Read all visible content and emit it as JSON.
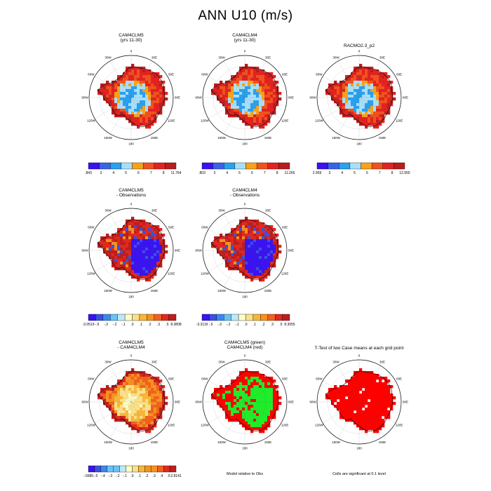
{
  "page": {
    "title": "ANN U10 (m/s)"
  },
  "lon_labels": [
    "0",
    "30E",
    "60E",
    "90E",
    "120E",
    "150E",
    "180",
    "150W",
    "120W",
    "90W",
    "60W",
    "30W"
  ],
  "colors": {
    "abs": [
      "#3b12f0",
      "#3a62e8",
      "#2aa0f0",
      "#a8dff8",
      "#f7a21a",
      "#f0521e",
      "#e32220",
      "#b81e1e"
    ],
    "diff": [
      "#3b12f0",
      "#3a52e0",
      "#3a88ef",
      "#69c2f6",
      "#bde8fa",
      "#fffcc4",
      "#fbe08a",
      "#f7b63a",
      "#f5931e",
      "#f0621e",
      "#e2281f",
      "#bd1e1e"
    ],
    "green": "#1fec2a",
    "red": "#ff0000",
    "land_outline": "#000000"
  },
  "panels": [
    {
      "title": [
        "CAM4CLM5",
        "(yrs 11-30)"
      ],
      "fill_kind": "abs",
      "colorbar": {
        "labels": [
          ".843",
          "3",
          "4",
          "5",
          "6",
          "7",
          "8",
          "11.764"
        ]
      }
    },
    {
      "title": [
        "CAM4CLM4",
        "(yrs 11-30)"
      ],
      "fill_kind": "abs",
      "colorbar": {
        "labels": [
          ".803",
          "3",
          "4",
          "5",
          "6",
          "7",
          "8",
          "11.265"
        ]
      }
    },
    {
      "title": [
        "RACMO2.3_p2"
      ],
      "fill_kind": "abs",
      "colorbar": {
        "labels": [
          "2.959",
          "3",
          "4",
          "5",
          "6",
          "7",
          "8",
          "12.955"
        ]
      }
    },
    {
      "title": [
        "CAM4CLM5",
        "- Observations"
      ],
      "fill_kind": "bias",
      "colorbar": {
        "labels": [
          "-3.0519",
          "-.5",
          "-.3",
          "-.2",
          "-.1",
          ".0",
          ".1",
          ".2",
          ".3",
          ".5",
          "8.3808"
        ]
      }
    },
    {
      "title": [
        "CAM4CLM4",
        "- Observations"
      ],
      "fill_kind": "bias",
      "colorbar": {
        "labels": [
          "-3.3119",
          "-.5",
          "-.3",
          "-.2",
          "-.1",
          ".0",
          ".1",
          ".2",
          ".3",
          ".5",
          "8.3055"
        ]
      }
    },
    {
      "title": [
        "CAM4CLM5",
        "- CAM4CLM4"
      ],
      "fill_kind": "modeldiff",
      "colorbar": {
        "labels": [
          "-.5685",
          "-.5",
          "-.4",
          "-.3",
          "-.2",
          "-.1",
          ".0",
          ".1",
          ".2",
          ".3",
          ".4",
          ".5",
          "2.8141"
        ]
      }
    },
    {
      "title": [
        "CAM4CLM5 (green)",
        "CAM4CLM4 (red)"
      ],
      "fill_kind": "greenred",
      "footer": "Model relative to Obs"
    },
    {
      "title": [
        "T-Test of two Case means at each grid point"
      ],
      "fill_kind": "ttest",
      "footer": "Cells are significant at 0.1 level"
    }
  ]
}
